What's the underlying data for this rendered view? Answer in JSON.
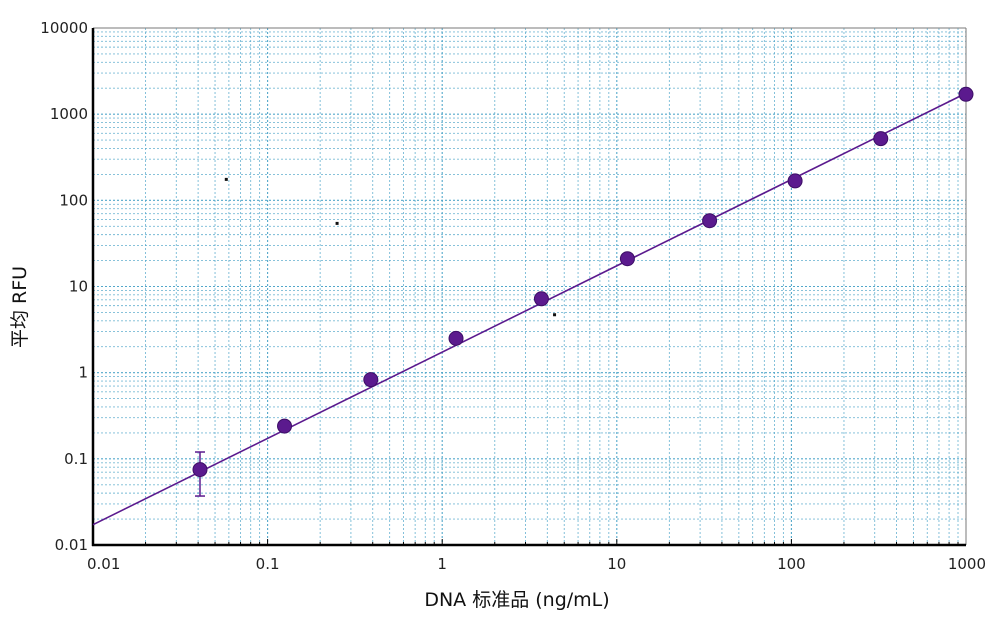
{
  "chart_data": {
    "type": "scatter",
    "title": "",
    "xlabel": "DNA 标准品 (ng/mL)",
    "ylabel": "平均 RFU",
    "x_scale": "log",
    "y_scale": "log",
    "xlim": [
      0.01,
      1000
    ],
    "ylim": [
      0.01,
      10000
    ],
    "x_ticks": [
      0.01,
      0.1,
      1,
      10,
      100,
      1000
    ],
    "x_tick_labels": [
      "0.01",
      "0.1",
      "1",
      "10",
      "100",
      "1000"
    ],
    "y_ticks": [
      0.01,
      0.1,
      1,
      10,
      100,
      1000,
      10000
    ],
    "y_tick_labels": [
      "0.01",
      "0.1",
      "1",
      "10",
      "100",
      "1000",
      "10000"
    ],
    "grid": true,
    "grid_style": "dotted major and minor",
    "grid_color": "#4aa3c8",
    "series": [
      {
        "type": "scatter",
        "color": "#5b1a8e",
        "x": [
          0.041,
          0.125,
          0.39,
          1.2,
          3.7,
          11.5,
          34,
          105,
          325,
          1000
        ],
        "y": [
          0.075,
          0.24,
          0.83,
          2.5,
          7.2,
          21,
          58,
          168,
          520,
          1700
        ],
        "error_low": [
          0.037,
          0.22,
          0.76,
          2.35,
          6.6,
          19.2,
          53,
          152,
          500,
          1570
        ],
        "error_high": [
          0.12,
          0.27,
          0.91,
          2.7,
          7.9,
          23,
          64,
          185,
          545,
          1830
        ]
      },
      {
        "type": "line",
        "color": "#5b1a8e",
        "x": [
          0.01,
          1000
        ],
        "y": [
          0.0172,
          1750
        ]
      }
    ],
    "stray_marks": [
      {
        "x": 0.058,
        "y": 175
      },
      {
        "x": 0.25,
        "y": 54
      },
      {
        "x": 4.4,
        "y": 4.7
      }
    ]
  }
}
